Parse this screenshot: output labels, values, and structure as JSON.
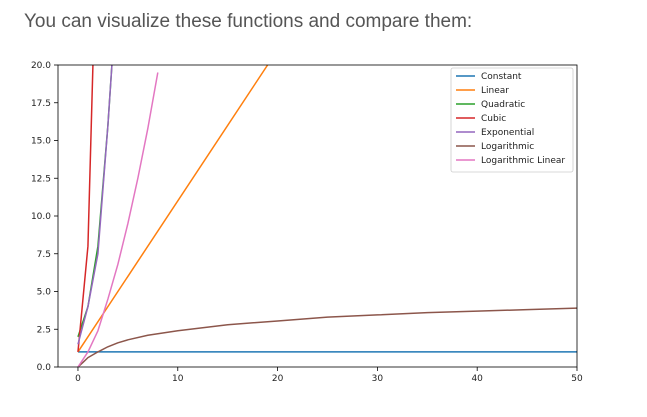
{
  "page": {
    "intro_text": "You can visualize these functions and compare them:"
  },
  "chart_data": {
    "type": "line",
    "title": "",
    "xlabel": "",
    "ylabel": "",
    "xlim": [
      -2,
      50
    ],
    "ylim": [
      0,
      20
    ],
    "xticks": [
      0,
      10,
      20,
      30,
      40,
      50
    ],
    "yticks": [
      0.0,
      2.5,
      5.0,
      7.5,
      10.0,
      12.5,
      15.0,
      17.5,
      20.0
    ],
    "xtick_labels": [
      "0",
      "10",
      "20",
      "30",
      "40",
      "50"
    ],
    "ytick_labels": [
      "0.0",
      "2.5",
      "5.0",
      "7.5",
      "10.0",
      "12.5",
      "15.0",
      "17.5",
      "20.0"
    ],
    "grid": false,
    "legend_position": "upper right",
    "series": [
      {
        "name": "Constant",
        "color": "#1f77b4",
        "x": [
          0,
          50
        ],
        "y": [
          1,
          1
        ]
      },
      {
        "name": "Linear",
        "color": "#ff7f0e",
        "x": [
          0,
          19
        ],
        "y": [
          1,
          20
        ]
      },
      {
        "name": "Quadratic",
        "color": "#2ca02c",
        "x": [
          0,
          1,
          2,
          3,
          3.4
        ],
        "y": [
          2,
          4,
          8,
          16,
          20
        ]
      },
      {
        "name": "Cubic",
        "color": "#d62728",
        "x": [
          0,
          1,
          1.5
        ],
        "y": [
          1,
          8,
          20
        ]
      },
      {
        "name": "Exponential",
        "color": "#9467bd",
        "x": [
          0,
          1,
          2,
          3,
          3.4
        ],
        "y": [
          1.5,
          4,
          7.5,
          16,
          20
        ]
      },
      {
        "name": "Logarithmic",
        "color": "#8c564b",
        "x": [
          0,
          0.5,
          1,
          2,
          3,
          4,
          5,
          7,
          10,
          15,
          20,
          25,
          30,
          35,
          40,
          45,
          50
        ],
        "y": [
          0,
          0.3,
          0.62,
          1.0,
          1.34,
          1.6,
          1.8,
          2.1,
          2.4,
          2.8,
          3.05,
          3.3,
          3.45,
          3.6,
          3.7,
          3.8,
          3.9
        ]
      },
      {
        "name": "Logarithmic Linear",
        "color": "#e377c2",
        "x": [
          0,
          1,
          2,
          3,
          4,
          5,
          6,
          7,
          8
        ],
        "y": [
          0,
          1,
          2.4,
          4.5,
          6.8,
          9.5,
          12.5,
          15.8,
          19.5
        ]
      }
    ]
  }
}
